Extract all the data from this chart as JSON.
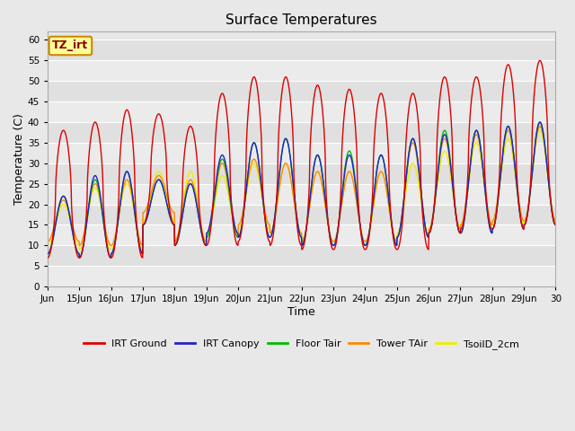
{
  "title": "Surface Temperatures",
  "xlabel": "Time",
  "ylabel": "Temperature (C)",
  "ylim": [
    0,
    62
  ],
  "yticks": [
    0,
    5,
    10,
    15,
    20,
    25,
    30,
    35,
    40,
    45,
    50,
    55,
    60
  ],
  "x_tick_days": [
    14,
    15,
    16,
    17,
    18,
    19,
    20,
    21,
    22,
    23,
    24,
    25,
    26,
    27,
    28,
    29,
    30
  ],
  "x_tick_labels": [
    "Jun",
    "15Jun",
    "16Jun",
    "17Jun",
    "18Jun",
    "19Jun",
    "20Jun",
    "21Jun",
    "22Jun",
    "23Jun",
    "24Jun",
    "25Jun",
    "26Jun",
    "27Jun",
    "28Jun",
    "29Jun",
    "30"
  ],
  "background_color": "#e8e8e8",
  "plot_bg_color": "#e8e8e8",
  "grid_color_light": "#f2f2f2",
  "grid_color_dark": "#d8d8d8",
  "annotation_text": "TZ_irt",
  "annotation_bg": "#ffff99",
  "annotation_border": "#cc8800",
  "annotation_text_color": "#880000",
  "series_colors": {
    "IRT Ground": "#dd0000",
    "IRT Canopy": "#2222cc",
    "Floor Tair": "#00bb00",
    "Tower TAir": "#ff8800",
    "TsoilD_2cm": "#eeee00"
  },
  "linewidth": 1.0,
  "n_points_per_day": 96,
  "day_peaks_irt_ground": [
    38,
    40,
    43,
    42,
    39,
    47,
    51,
    51,
    49,
    48,
    47,
    47,
    51,
    51,
    54,
    55,
    55
  ],
  "day_mins_irt_ground": [
    7,
    7,
    7,
    15,
    10,
    10,
    11,
    10,
    9,
    9,
    9,
    9,
    13,
    14,
    14,
    15,
    16
  ],
  "day_peaks_canopy": [
    22,
    27,
    28,
    26,
    25,
    32,
    35,
    36,
    32,
    32,
    32,
    36,
    37,
    38,
    39,
    40,
    40
  ],
  "day_mins_canopy": [
    8,
    7,
    8,
    15,
    10,
    13,
    12,
    12,
    10,
    10,
    10,
    12,
    13,
    13,
    14,
    15,
    17
  ],
  "day_peaks_floor": [
    22,
    26,
    28,
    26,
    25,
    31,
    35,
    36,
    32,
    33,
    32,
    36,
    38,
    38,
    39,
    40,
    40
  ],
  "day_mins_floor": [
    8,
    7,
    8,
    15,
    10,
    12,
    12,
    12,
    10,
    10,
    10,
    12,
    13,
    13,
    14,
    15,
    17
  ],
  "day_peaks_tower": [
    21,
    25,
    26,
    27,
    26,
    30,
    31,
    30,
    28,
    28,
    28,
    35,
    36,
    37,
    38,
    39,
    38
  ],
  "day_mins_tower": [
    11,
    10,
    10,
    18,
    11,
    12,
    15,
    13,
    11,
    11,
    11,
    12,
    14,
    15,
    16,
    16,
    17
  ],
  "day_peaks_soil": [
    20,
    24,
    25,
    28,
    28,
    27,
    30,
    30,
    28,
    28,
    28,
    30,
    33,
    35,
    36,
    38,
    38
  ],
  "day_mins_soil": [
    10,
    9,
    9,
    16,
    11,
    13,
    14,
    13,
    11,
    11,
    10,
    13,
    14,
    15,
    15,
    16,
    17
  ]
}
